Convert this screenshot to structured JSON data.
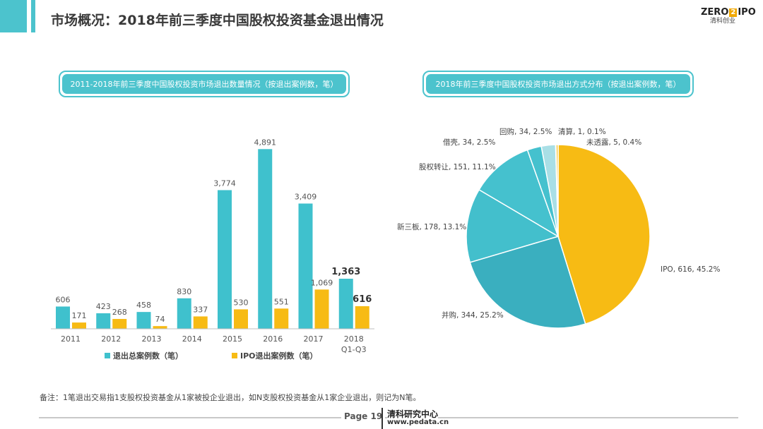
{
  "page": {
    "title": "市场概况：2018年前三季度中国股权投资基金退出情况",
    "logo_top_left": "ZERO",
    "logo_box": "2",
    "logo_top_right": "IPO",
    "logo_bottom": "清科创业",
    "footnote": "备注：1笔退出交易指1支股权投资基金从1家被投企业退出，如N支股权投资基金从1家企业退出，则记为N笔。",
    "page_label": "Page 19",
    "footer_brand": "清科研究中心",
    "footer_url": "www.pedata.cn"
  },
  "colors": {
    "teal": "#3fc1cd",
    "yellow": "#f7bb14",
    "caption_bg": "#4cc3cd"
  },
  "chart_data": [
    {
      "type": "bar",
      "title": "2011-2018年前三季度中国股权投资市场退出数量情况（按退出案例数，笔）",
      "categories": [
        "2011",
        "2012",
        "2013",
        "2014",
        "2015",
        "2016",
        "2017",
        "2018\nQ1-Q3"
      ],
      "series": [
        {
          "name": "退出总案例数（笔）",
          "values": [
            606,
            423,
            458,
            830,
            3774,
            4891,
            3409,
            1363
          ],
          "labels": [
            "606",
            "423",
            "458",
            "830",
            "3,774",
            "4,891",
            "3,409",
            "1,363"
          ]
        },
        {
          "name": "IPO退出案例数（笔）",
          "values": [
            171,
            268,
            74,
            337,
            530,
            551,
            1069,
            616
          ],
          "labels": [
            "171",
            "268",
            "74",
            "337",
            "530",
            "551",
            "1,069",
            "616"
          ]
        }
      ],
      "ylim": [
        0,
        5300
      ],
      "grid": false,
      "legend": "bottom"
    },
    {
      "type": "pie",
      "title": "2018年前三季度中国股权投资市场退出方式分布（按退出案例数，笔）",
      "slices": [
        {
          "label": "IPO",
          "value": 616,
          "percent": "45.2%",
          "text": "IPO, 616, 45.2%",
          "color": "#f7bb14"
        },
        {
          "label": "并购",
          "value": 344,
          "percent": "25.2%",
          "text": "并购, 344, 25.2%",
          "color": "#3aafbf"
        },
        {
          "label": "新三板",
          "value": 178,
          "percent": "13.1%",
          "text": "新三板, 178, 13.1%",
          "color": "#43bfcc"
        },
        {
          "label": "股权转让",
          "value": 151,
          "percent": "11.1%",
          "text": "股权转让, 151, 11.1%",
          "color": "#45c1ce"
        },
        {
          "label": "借壳",
          "value": 34,
          "percent": "2.5%",
          "text": "借壳, 34, 2.5%",
          "color": "#45c1ce"
        },
        {
          "label": "回购",
          "value": 34,
          "percent": "2.5%",
          "text": "回购, 34, 2.5%",
          "color": "#a9dfe6"
        },
        {
          "label": "清算",
          "value": 1,
          "percent": "0.1%",
          "text": "清算, 1, 0.1%",
          "color": "#4cc3cd"
        },
        {
          "label": "未透露",
          "value": 5,
          "percent": "0.4%",
          "text": "未透露, 5, 0.4%",
          "color": "#f5c431"
        }
      ]
    }
  ]
}
